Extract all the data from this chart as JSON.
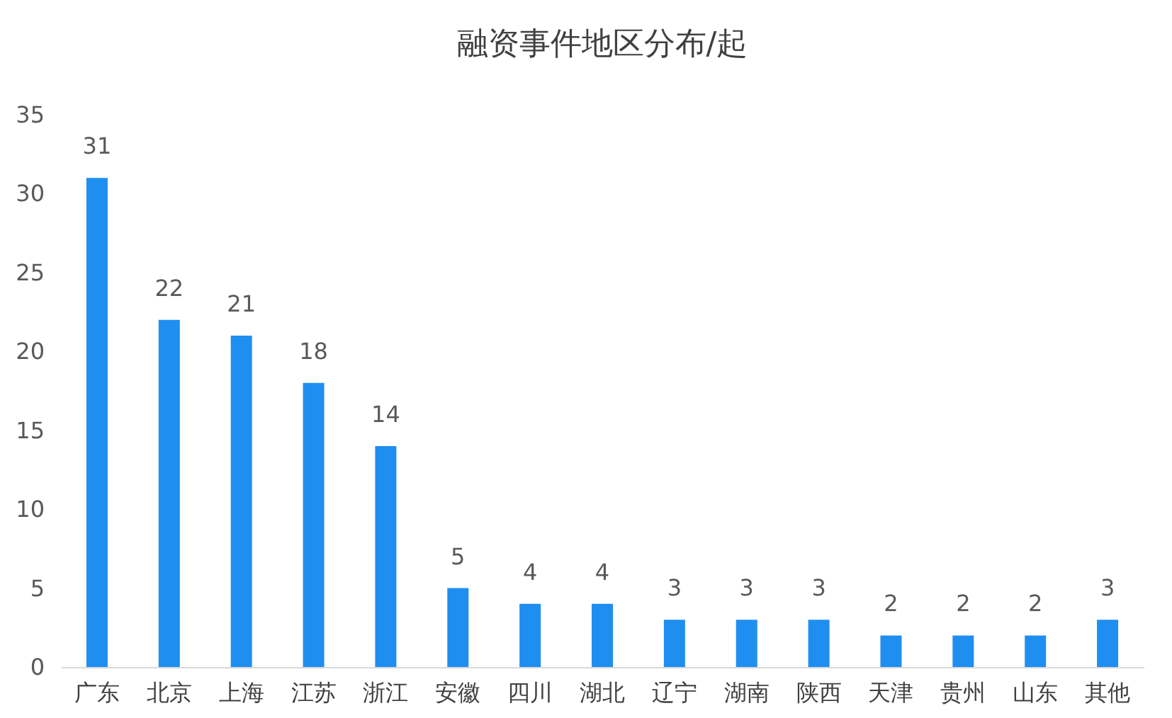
{
  "chart_data": {
    "type": "bar",
    "title": "融资事件地区分布/起",
    "categories": [
      "广东",
      "北京",
      "上海",
      "江苏",
      "浙江",
      "安徽",
      "四川",
      "湖北",
      "辽宁",
      "湖南",
      "陕西",
      "天津",
      "贵州",
      "山东",
      "其他"
    ],
    "values": [
      31,
      22,
      21,
      18,
      14,
      5,
      4,
      4,
      3,
      3,
      3,
      2,
      2,
      2,
      3
    ],
    "color": "#1f8ef1",
    "ylim": [
      0,
      35
    ],
    "yticks": [
      0,
      5,
      10,
      15,
      20,
      25,
      30,
      35
    ],
    "grid": false,
    "data_labels": true
  }
}
